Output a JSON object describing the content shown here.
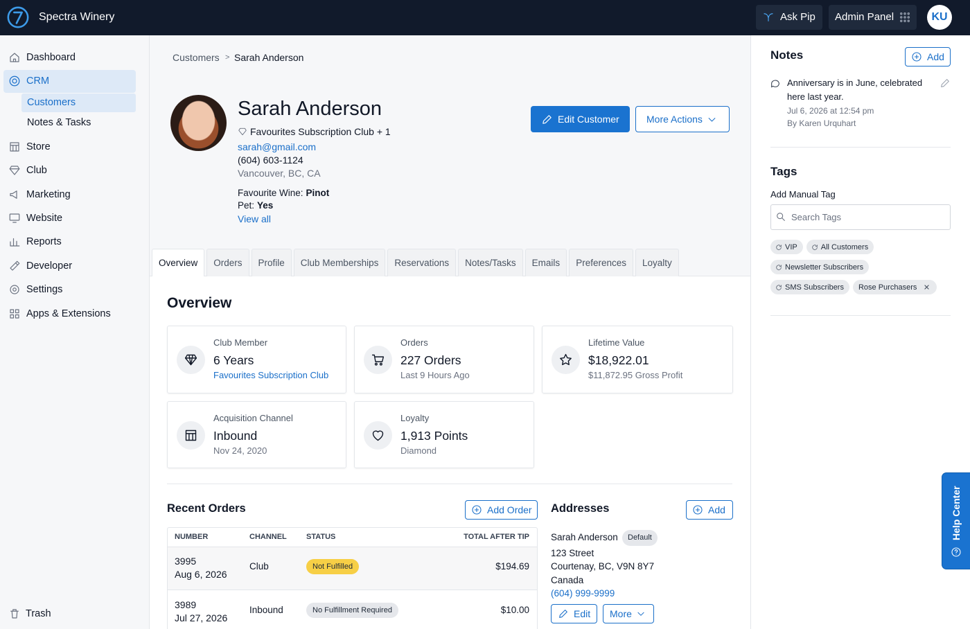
{
  "topbar": {
    "brand": "Spectra Winery",
    "ask_pip": "Ask Pip",
    "admin_panel": "Admin Panel",
    "avatar": "KU"
  },
  "nav": [
    {
      "label": "Dashboard"
    },
    {
      "label": "CRM",
      "children": [
        "Customers",
        "Notes & Tasks"
      ]
    },
    {
      "label": "Store"
    },
    {
      "label": "Club"
    },
    {
      "label": "Marketing"
    },
    {
      "label": "Website"
    },
    {
      "label": "Reports"
    },
    {
      "label": "Developer"
    },
    {
      "label": "Settings"
    },
    {
      "label": "Apps & Extensions"
    }
  ],
  "trash": "Trash",
  "breadcrumb": {
    "parent": "Customers",
    "separator": ">",
    "current": "Sarah Anderson"
  },
  "customer": {
    "name": "Sarah Anderson",
    "club": "Favourites Subscription Club + 1",
    "email": "sarah@gmail.com",
    "phone": "(604) 603-1124",
    "location": "Vancouver, BC, CA",
    "favourite_wine_label": "Favourite Wine:",
    "favourite_wine": "Pinot",
    "pet_label": "Pet:",
    "pet": "Yes",
    "view_all": "View all"
  },
  "actions": {
    "edit": "Edit Customer",
    "more": "More Actions"
  },
  "tabs": [
    "Overview",
    "Orders",
    "Profile",
    "Club Memberships",
    "Reservations",
    "Notes/Tasks",
    "Emails",
    "Preferences",
    "Loyalty"
  ],
  "overview": {
    "title": "Overview",
    "cards": [
      {
        "label": "Club Member",
        "value": "6 Years",
        "sub": "Favourites Subscription Club"
      },
      {
        "label": "Orders",
        "value": "227 Orders",
        "sub": "Last 9 Hours Ago"
      },
      {
        "label": "Lifetime Value",
        "value": "$18,922.01",
        "sub": "$11,872.95 Gross Profit"
      },
      {
        "label": "Acquisition Channel",
        "value": "Inbound",
        "sub": "Nov 24, 2020"
      },
      {
        "label": "Loyalty",
        "value": "1,913 Points",
        "sub": "Diamond"
      }
    ]
  },
  "recent_orders": {
    "title": "Recent Orders",
    "add": "Add Order",
    "columns": [
      "NUMBER",
      "CHANNEL",
      "STATUS",
      "TOTAL AFTER TIP"
    ],
    "rows": [
      {
        "number": "3995",
        "date": "Aug 6, 2026",
        "channel": "Club",
        "status": "Not Fulfilled",
        "color": "#f7cf46",
        "total": "$194.69"
      },
      {
        "number": "3989",
        "date": "Jul 27, 2026",
        "channel": "Inbound",
        "status": "No Fulfillment Required",
        "color": "#e5e7eb",
        "total": "$10.00"
      }
    ]
  },
  "addresses": {
    "title": "Addresses",
    "add": "Add",
    "name": "Sarah Anderson",
    "badge": "Default",
    "lines": [
      "123 Street",
      "Courtenay, BC, V9N 8Y7",
      "Canada"
    ],
    "phone": "(604) 999-9999",
    "edit": "Edit",
    "more": "More"
  },
  "notes": {
    "title": "Notes",
    "add": "Add",
    "items": [
      {
        "text": "Anniversary is in June, celebrated here last year.",
        "date": "Jul 6, 2026 at 12:54 pm",
        "author": "By Karen Urquhart"
      }
    ]
  },
  "tags": {
    "title": "Tags",
    "add_label": "Add Manual Tag",
    "search_placeholder": "Search Tags",
    "items": [
      "VIP",
      "All Customers",
      "Newsletter Subscribers",
      "SMS Subscribers",
      "Rose Purchasers"
    ]
  },
  "help_center": "Help Center"
}
